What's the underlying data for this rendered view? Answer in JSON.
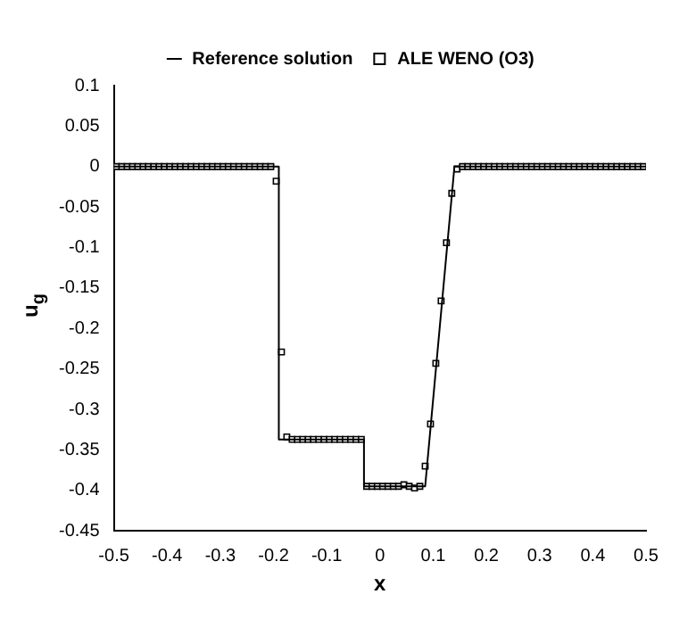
{
  "chart_data": {
    "type": "line",
    "xlabel": "x",
    "ylabel": "u$_{g}$",
    "xlim": [
      -0.5,
      0.5
    ],
    "xticks": [
      -0.5,
      -0.4,
      -0.3,
      -0.2,
      -0.1,
      0,
      0.1,
      0.2,
      0.3,
      0.4,
      0.5
    ],
    "ylim": [
      -0.45,
      0.1
    ],
    "yticks": [
      -0.45,
      -0.4,
      -0.35,
      -0.3,
      -0.25,
      -0.2,
      -0.15,
      -0.1,
      -0.05,
      0,
      0.05,
      0.1
    ],
    "grid": false,
    "legend": "top",
    "series": [
      {
        "name": "Reference solution",
        "color": "#000000",
        "marker": "none",
        "line_style": "solid",
        "x": [
          -0.5,
          -0.19,
          -0.19,
          -0.03,
          -0.03,
          0.085,
          0.14,
          0.5
        ],
        "values": [
          0,
          0,
          -0.337,
          -0.337,
          -0.395,
          -0.395,
          0,
          0
        ]
      },
      {
        "name": "ALE WENO (O3)",
        "type": "scatter",
        "color": "#000000",
        "marker": "square",
        "x": [
          -0.495,
          -0.485,
          -0.475,
          -0.465,
          -0.455,
          -0.445,
          -0.435,
          -0.425,
          -0.415,
          -0.405,
          -0.395,
          -0.385,
          -0.375,
          -0.365,
          -0.355,
          -0.345,
          -0.335,
          -0.325,
          -0.315,
          -0.305,
          -0.295,
          -0.285,
          -0.275,
          -0.265,
          -0.255,
          -0.245,
          -0.235,
          -0.225,
          -0.215,
          -0.205,
          -0.195,
          -0.185,
          -0.175,
          -0.165,
          -0.155,
          -0.145,
          -0.135,
          -0.125,
          -0.115,
          -0.105,
          -0.095,
          -0.085,
          -0.075,
          -0.065,
          -0.055,
          -0.045,
          -0.035,
          -0.025,
          -0.015,
          -0.005,
          0.005,
          0.015,
          0.025,
          0.035,
          0.045,
          0.055,
          0.065,
          0.075,
          0.085,
          0.095,
          0.105,
          0.115,
          0.125,
          0.135,
          0.145,
          0.155,
          0.165,
          0.175,
          0.185,
          0.195,
          0.205,
          0.215,
          0.225,
          0.235,
          0.245,
          0.255,
          0.265,
          0.275,
          0.285,
          0.295,
          0.305,
          0.315,
          0.325,
          0.335,
          0.345,
          0.355,
          0.365,
          0.375,
          0.385,
          0.395,
          0.405,
          0.415,
          0.425,
          0.435,
          0.445,
          0.455,
          0.465,
          0.475,
          0.485,
          0.495
        ],
        "values": [
          0,
          0,
          0,
          0,
          0,
          0,
          0,
          0,
          0,
          0,
          0,
          0,
          0,
          0,
          0,
          0,
          0,
          0,
          0,
          0,
          0,
          0,
          0,
          0,
          0,
          0,
          0,
          0,
          0,
          0,
          -0.018,
          -0.229,
          -0.334,
          -0.337,
          -0.337,
          -0.337,
          -0.337,
          -0.337,
          -0.337,
          -0.337,
          -0.337,
          -0.337,
          -0.337,
          -0.337,
          -0.337,
          -0.337,
          -0.337,
          -0.395,
          -0.395,
          -0.395,
          -0.395,
          -0.395,
          -0.395,
          -0.395,
          -0.393,
          -0.395,
          -0.397,
          -0.395,
          -0.37,
          -0.318,
          -0.243,
          -0.166,
          -0.094,
          -0.033,
          -0.003,
          0,
          0,
          0,
          0,
          0,
          0,
          0,
          0,
          0,
          0,
          0,
          0,
          0,
          0,
          0,
          0,
          0,
          0,
          0,
          0,
          0,
          0,
          0,
          0,
          0,
          0,
          0,
          0,
          0,
          0,
          0,
          0,
          0,
          0,
          0
        ]
      }
    ]
  }
}
